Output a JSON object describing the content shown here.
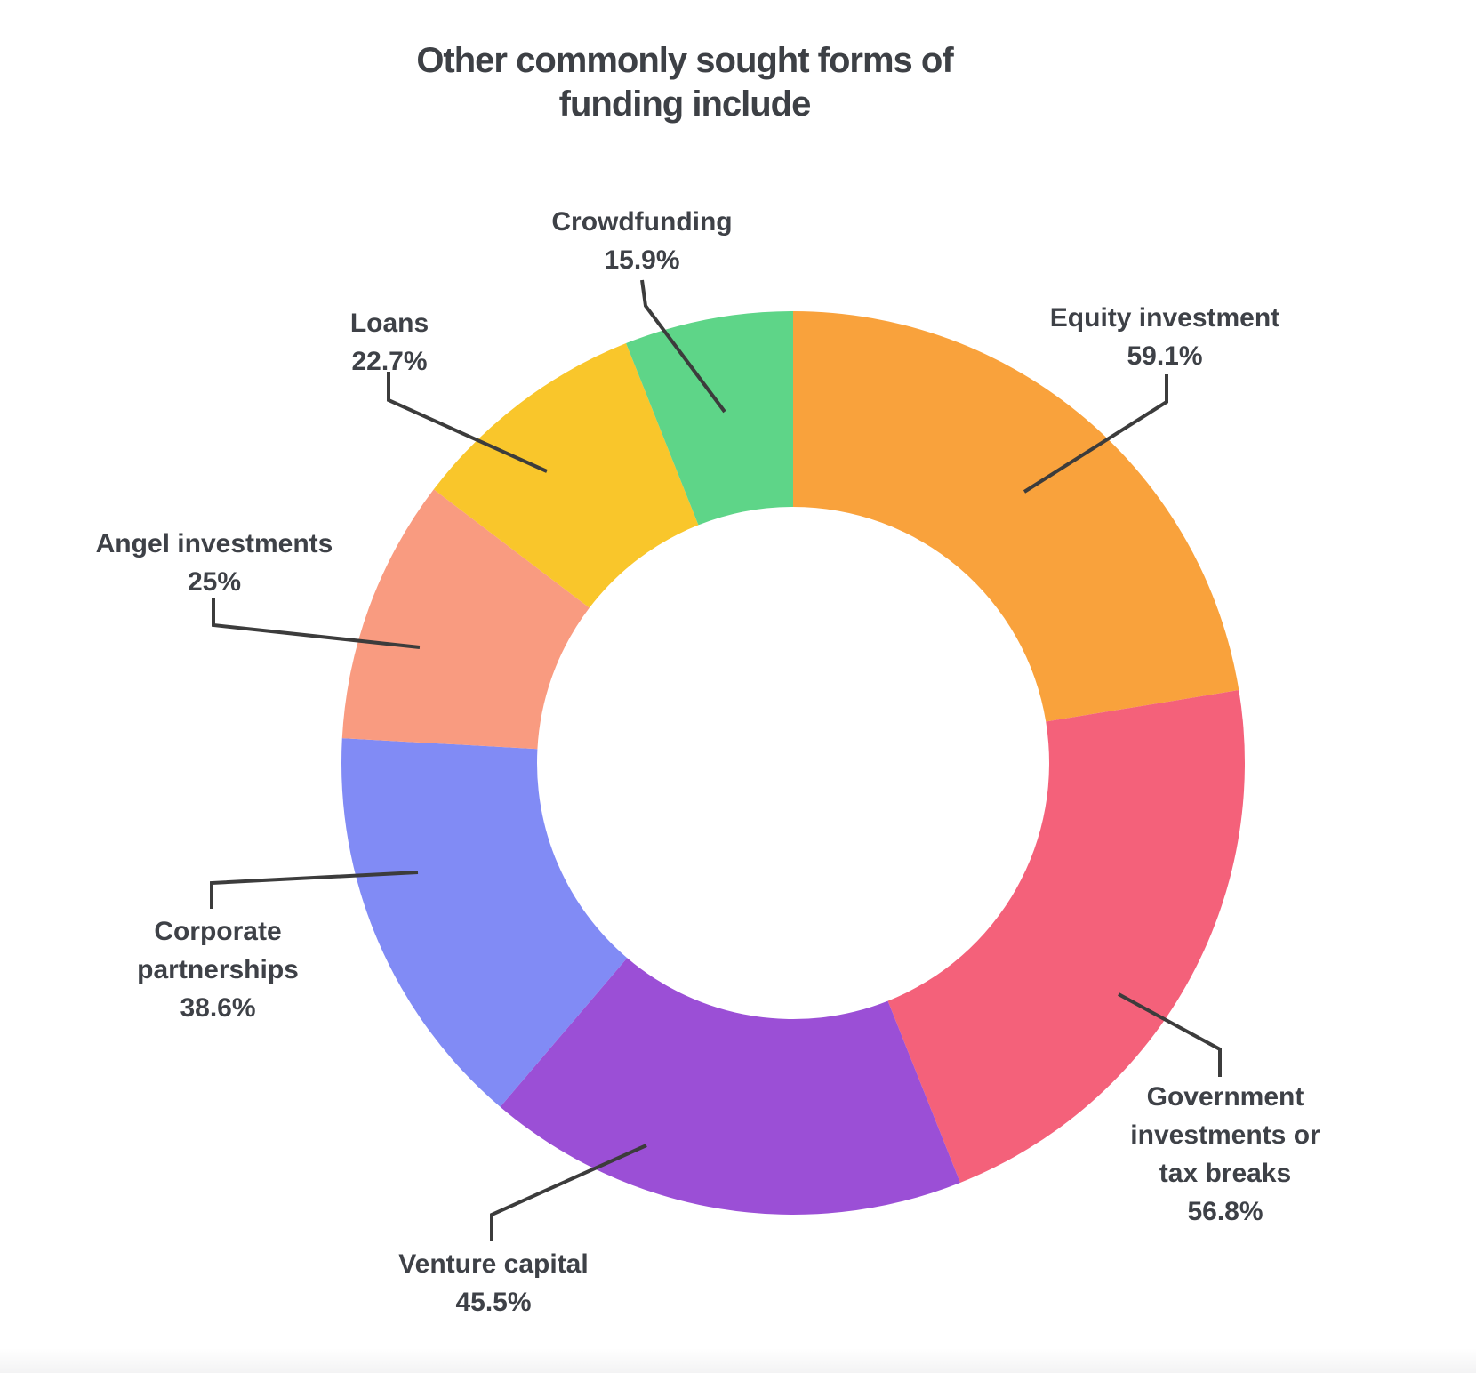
{
  "chart_data": {
    "type": "pie",
    "variant": "donut",
    "title": "Other commonly sought forms of funding include",
    "legend": "none",
    "label_style": "outside-callouts-with-leader-lines",
    "start_angle_deg_from_top_clockwise": 0,
    "inner_radius_ratio": 0.567,
    "slices": [
      {
        "id": "equity-investment",
        "label": "Equity investment",
        "value": 59.1,
        "pct": "59.1%",
        "color": "#F9A23C"
      },
      {
        "id": "government-investments-or-tax-breaks",
        "label": "Government investments or tax breaks",
        "value": 56.8,
        "pct": "56.8%",
        "color": "#F4617A"
      },
      {
        "id": "venture-capital",
        "label": "Venture capital",
        "value": 45.5,
        "pct": "45.5%",
        "color": "#9B4FD6"
      },
      {
        "id": "corporate-partnerships",
        "label": "Corporate partnerships",
        "value": 38.6,
        "pct": "38.6%",
        "color": "#818BF5"
      },
      {
        "id": "angel-investments",
        "label": "Angel investments",
        "value": 25,
        "pct": "25%",
        "color": "#F99B80"
      },
      {
        "id": "loans",
        "label": "Loans",
        "value": 22.7,
        "pct": "22.7%",
        "color": "#F9C62B"
      },
      {
        "id": "crowdfunding",
        "label": "Crowdfunding",
        "value": 15.9,
        "pct": "15.9%",
        "color": "#5ED588"
      }
    ],
    "colors": {
      "title_text": "#3d4045",
      "label_text": "#3e4147",
      "leader_line": "#3c3c3c",
      "background": "#ffffff",
      "footer_strip": "#f3f3f4"
    }
  }
}
